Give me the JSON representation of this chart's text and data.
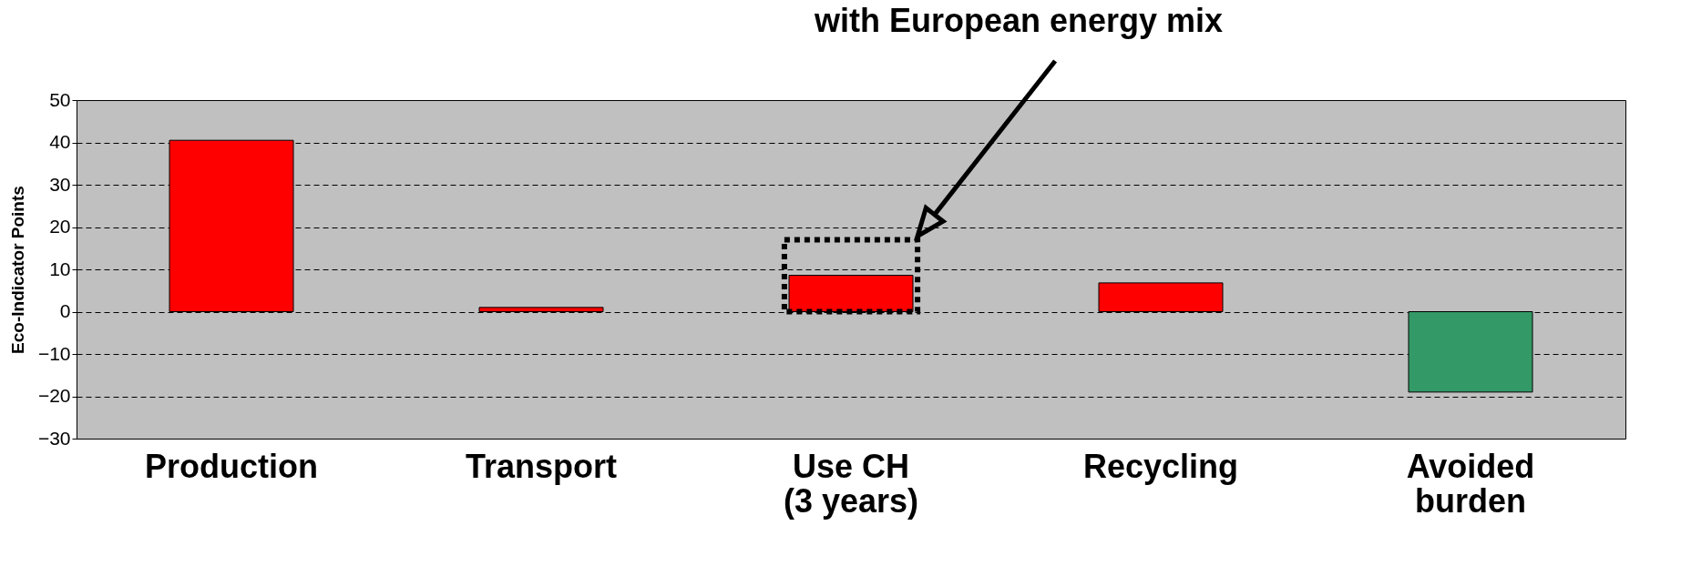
{
  "chart_data": {
    "type": "bar",
    "ylabel": "Eco-Indicator Points",
    "categories": [
      "Production",
      "Transport",
      "Use CH\n(3 years)",
      "Recycling",
      "Avoided\nburden"
    ],
    "series": [
      {
        "values": [
          40.5,
          1.0,
          8.6,
          6.8,
          -19.0
        ],
        "colors": [
          "#ff0000",
          "#ff0000",
          "#ff0000",
          "#ff0000",
          "#339966"
        ]
      },
      {
        "name": "with European energy mix",
        "color": "#000000",
        "values": [
          null,
          null,
          17,
          null,
          null
        ],
        "line_style": "dotted"
      }
    ],
    "ylim": [
      -30,
      50
    ],
    "yticks": [
      -30,
      -20,
      -10,
      0,
      10,
      20,
      30,
      40,
      50
    ],
    "grid": "y"
  }
}
